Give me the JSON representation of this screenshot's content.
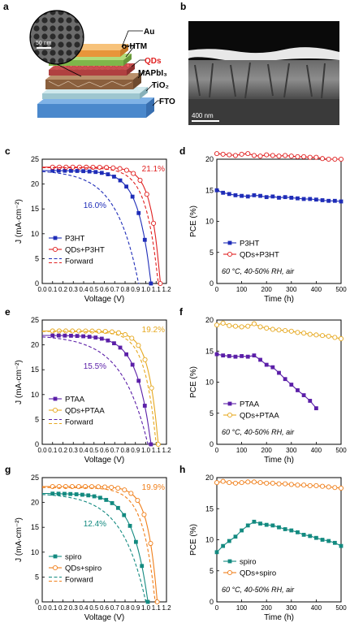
{
  "figure": {
    "panel_a": {
      "letter": "a",
      "scale_label": "50 nm",
      "layers": [
        "Au",
        "o-HTM",
        "QDs",
        "MAPbI₃",
        "TiO₂",
        "FTO"
      ]
    },
    "panel_b": {
      "letter": "b",
      "scale_label": "400 nm"
    }
  },
  "chart_data": [
    {
      "id": "c",
      "letter": "c",
      "type": "line",
      "xlabel": "Voltage (V)",
      "ylabel": "J (mA·cm⁻²)",
      "xlim": [
        0,
        1.2
      ],
      "ylim": [
        0,
        25
      ],
      "xticks": [
        "0.0",
        "0.1",
        "0.2",
        "0.3",
        "0.4",
        "0.5",
        "0.6",
        "0.7",
        "0.8",
        "0.9",
        "1.0",
        "1.1",
        "1.2"
      ],
      "yticks": [
        "0",
        "5",
        "10",
        "15",
        "20",
        "25"
      ],
      "colors": {
        "control": "#1f2db8",
        "qd": "#e02020"
      },
      "series": [
        {
          "name": "P3HT",
          "type": "reverse",
          "jsc": 22.7,
          "voc": 1.05,
          "n": 1.7
        },
        {
          "name": "QDs+P3HT",
          "type": "reverse",
          "jsc": 23.4,
          "voc": 1.14,
          "n": 1.25
        },
        {
          "name": "Forward",
          "type": "forward",
          "jsc": 22.5,
          "voc": 0.93,
          "n": 3.0
        },
        {
          "name": "",
          "type": "forward",
          "jsc": 23.3,
          "voc": 1.12,
          "n": 1.6
        }
      ],
      "legend": [
        "P3HT",
        "QDs+P3HT",
        "Forward"
      ],
      "annotations": {
        "qd_pce": "21.1%",
        "control_pce": "16.0%"
      }
    },
    {
      "id": "d",
      "letter": "d",
      "type": "line",
      "xlabel": "Time (h)",
      "ylabel": "PCE (%)",
      "xlim": [
        0,
        500
      ],
      "ylim": [
        0,
        20
      ],
      "xticks": [
        "0",
        "100",
        "200",
        "300",
        "400",
        "500"
      ],
      "yticks": [
        "0",
        "5",
        "10",
        "15",
        "20"
      ],
      "colors": {
        "control": "#1f2db8",
        "qd": "#e02020"
      },
      "series": [
        {
          "name": "P3HT",
          "x": [
            0,
            25,
            50,
            75,
            100,
            125,
            150,
            175,
            200,
            225,
            250,
            275,
            300,
            325,
            350,
            375,
            400,
            425,
            450,
            475,
            500
          ],
          "y": [
            15.0,
            14.6,
            14.4,
            14.2,
            14.1,
            14.0,
            14.2,
            14.1,
            13.9,
            14.0,
            13.8,
            13.9,
            13.8,
            13.7,
            13.6,
            13.6,
            13.5,
            13.4,
            13.3,
            13.3,
            13.2
          ]
        },
        {
          "name": "QDs+P3HT",
          "x": [
            0,
            25,
            50,
            75,
            100,
            125,
            150,
            175,
            200,
            225,
            250,
            275,
            300,
            325,
            350,
            375,
            400,
            425,
            450,
            475,
            500
          ],
          "y": [
            20.9,
            20.8,
            20.7,
            20.6,
            20.8,
            20.9,
            20.6,
            20.5,
            20.7,
            20.6,
            20.5,
            20.6,
            20.5,
            20.4,
            20.4,
            20.3,
            20.3,
            20.1,
            20.0,
            20.0,
            20.0
          ]
        }
      ],
      "legend": [
        "P3HT",
        "QDs+P3HT"
      ],
      "condition": "60 °C, 40-50% RH, air"
    },
    {
      "id": "e",
      "letter": "e",
      "type": "line",
      "xlabel": "Voltage (V)",
      "ylabel": "J (mA·cm⁻²)",
      "xlim": [
        0,
        1.2
      ],
      "ylim": [
        0,
        25
      ],
      "xticks": [
        "0.0",
        "0.1",
        "0.2",
        "0.3",
        "0.4",
        "0.5",
        "0.6",
        "0.7",
        "0.8",
        "0.9",
        "1.0",
        "1.1",
        "1.2"
      ],
      "yticks": [
        "0",
        "5",
        "10",
        "15",
        "20",
        "25"
      ],
      "colors": {
        "control": "#5b1fa8",
        "qd": "#e6a81f"
      },
      "series": [
        {
          "name": "PTAA",
          "type": "reverse",
          "jsc": 21.9,
          "voc": 1.05,
          "n": 1.9
        },
        {
          "name": "QDs+PTAA",
          "type": "reverse",
          "jsc": 22.8,
          "voc": 1.12,
          "n": 1.3
        },
        {
          "name": "Forward",
          "type": "forward",
          "jsc": 21.6,
          "voc": 1.02,
          "n": 3.5
        },
        {
          "name": "",
          "type": "forward",
          "jsc": 22.7,
          "voc": 1.1,
          "n": 1.5
        }
      ],
      "legend": [
        "PTAA",
        "QDs+PTAA",
        "Forward"
      ],
      "annotations": {
        "qd_pce": "19.2%",
        "control_pce": "15.5%"
      }
    },
    {
      "id": "f",
      "letter": "f",
      "type": "line",
      "xlabel": "Time (h)",
      "ylabel": "PCE (%)",
      "xlim": [
        0,
        500
      ],
      "ylim": [
        0,
        20
      ],
      "xticks": [
        "0",
        "100",
        "200",
        "300",
        "400",
        "500"
      ],
      "yticks": [
        "0",
        "5",
        "10",
        "15",
        "20"
      ],
      "colors": {
        "control": "#5b1fa8",
        "qd": "#e6a81f"
      },
      "series": [
        {
          "name": "PTAA",
          "x": [
            0,
            25,
            50,
            75,
            100,
            125,
            150,
            175,
            200,
            225,
            250,
            275,
            300,
            325,
            350,
            375,
            400
          ],
          "y": [
            14.5,
            14.3,
            14.2,
            14.1,
            14.2,
            14.1,
            14.3,
            13.6,
            12.8,
            12.4,
            11.5,
            10.5,
            9.6,
            8.7,
            7.9,
            7.0,
            5.8
          ]
        },
        {
          "name": "QDs+PTAA",
          "x": [
            0,
            25,
            50,
            75,
            100,
            125,
            150,
            175,
            200,
            225,
            250,
            275,
            300,
            325,
            350,
            375,
            400,
            425,
            450,
            475,
            500
          ],
          "y": [
            19.2,
            19.5,
            19.1,
            19.0,
            18.9,
            19.0,
            19.4,
            18.9,
            18.7,
            18.5,
            18.4,
            18.3,
            18.2,
            18.0,
            17.9,
            17.7,
            17.6,
            17.5,
            17.4,
            17.2,
            17.0
          ]
        }
      ],
      "legend": [
        "PTAA",
        "QDs+PTAA"
      ],
      "condition": "60 °C, 40-50% RH, air"
    },
    {
      "id": "g",
      "letter": "g",
      "type": "line",
      "xlabel": "Voltage (V)",
      "ylabel": "J (mA·cm⁻²)",
      "xlim": [
        0,
        1.2
      ],
      "ylim": [
        0,
        25
      ],
      "xticks": [
        "0.0",
        "0.1",
        "0.2",
        "0.3",
        "0.4",
        "0.5",
        "0.6",
        "0.7",
        "0.8",
        "0.9",
        "1.0",
        "1.1",
        "1.2"
      ],
      "yticks": [
        "0",
        "5",
        "10",
        "15",
        "20",
        "25"
      ],
      "colors": {
        "control": "#138a80",
        "qd": "#f07f1a"
      },
      "series": [
        {
          "name": "spiro",
          "type": "reverse",
          "jsc": 21.8,
          "voc": 1.02,
          "n": 2.0
        },
        {
          "name": "QDs+spiro",
          "type": "reverse",
          "jsc": 23.2,
          "voc": 1.11,
          "n": 1.25
        },
        {
          "name": "Forward",
          "type": "forward",
          "jsc": 21.6,
          "voc": 1.0,
          "n": 3.2
        },
        {
          "name": "",
          "type": "forward",
          "jsc": 23.0,
          "voc": 1.09,
          "n": 1.6
        }
      ],
      "legend": [
        "spiro",
        "QDs+spiro",
        "Forward"
      ],
      "annotations": {
        "qd_pce": "19.9%",
        "control_pce": "12.4%"
      }
    },
    {
      "id": "h",
      "letter": "h",
      "type": "line",
      "xlabel": "Time (h)",
      "ylabel": "PCE (%)",
      "xlim": [
        0,
        500
      ],
      "ylim": [
        0,
        20
      ],
      "xticks": [
        "0",
        "100",
        "200",
        "300",
        "400",
        "500"
      ],
      "yticks": [
        "0",
        "5",
        "10",
        "15",
        "20"
      ],
      "colors": {
        "control": "#138a80",
        "qd": "#f07f1a"
      },
      "series": [
        {
          "name": "spiro",
          "x": [
            0,
            25,
            50,
            75,
            100,
            125,
            150,
            175,
            200,
            225,
            250,
            275,
            300,
            325,
            350,
            375,
            400,
            425,
            450,
            475,
            500
          ],
          "y": [
            8.0,
            9.0,
            9.8,
            10.5,
            11.5,
            12.3,
            12.9,
            12.6,
            12.4,
            12.3,
            12.0,
            11.7,
            11.5,
            11.2,
            10.8,
            10.6,
            10.3,
            10.0,
            9.8,
            9.5,
            9.0
          ]
        },
        {
          "name": "QDs+spiro",
          "x": [
            0,
            25,
            50,
            75,
            100,
            125,
            150,
            175,
            200,
            225,
            250,
            275,
            300,
            325,
            350,
            375,
            400,
            425,
            450,
            475,
            500
          ],
          "y": [
            19.2,
            19.4,
            19.2,
            19.1,
            19.2,
            19.3,
            19.3,
            19.2,
            19.1,
            19.1,
            19.0,
            19.0,
            18.9,
            18.8,
            18.8,
            18.7,
            18.7,
            18.6,
            18.5,
            18.4,
            18.3
          ]
        }
      ],
      "legend": [
        "spiro",
        "QDs+spiro"
      ],
      "condition": "60 °C, 40-50% RH, air"
    }
  ]
}
